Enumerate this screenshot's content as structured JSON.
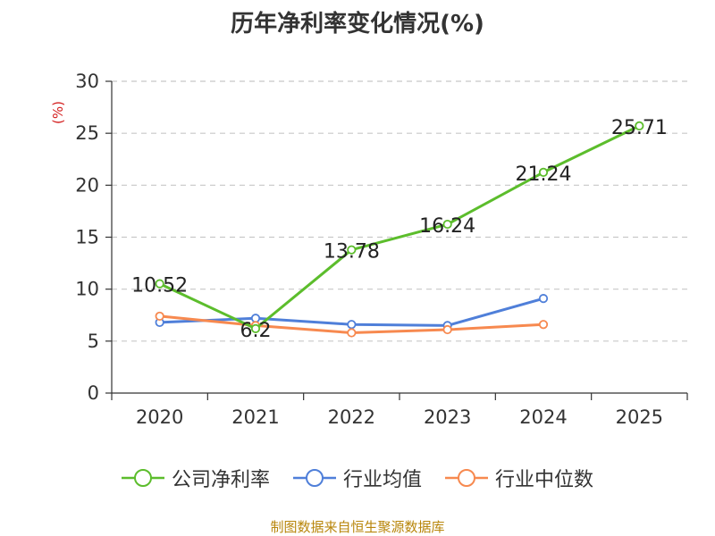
{
  "chart_data": {
    "type": "line",
    "title": "历年净利率变化情况(%)",
    "ylabel": "(%)",
    "categories": [
      "2020",
      "2021",
      "2022",
      "2023",
      "2024",
      "2025"
    ],
    "ylim": [
      0,
      30
    ],
    "yticks": [
      0,
      5,
      10,
      15,
      20,
      25,
      30
    ],
    "grid": true,
    "legend_position": "bottom",
    "series": [
      {
        "name": "公司净利率",
        "color": "#5cbd2c",
        "values": [
          10.52,
          6.2,
          13.78,
          16.24,
          21.24,
          25.71
        ],
        "labels": [
          "10.52",
          "6.2",
          "13.78",
          "16.24",
          "21.24",
          "25.71"
        ]
      },
      {
        "name": "行业均值",
        "color": "#4f7fd9",
        "values": [
          6.8,
          7.2,
          6.6,
          6.5,
          9.1,
          null
        ]
      },
      {
        "name": "行业中位数",
        "color": "#f7894f",
        "values": [
          7.4,
          6.5,
          5.8,
          6.1,
          6.6,
          null
        ]
      }
    ]
  },
  "footer": "制图数据来自恒生聚源数据库"
}
